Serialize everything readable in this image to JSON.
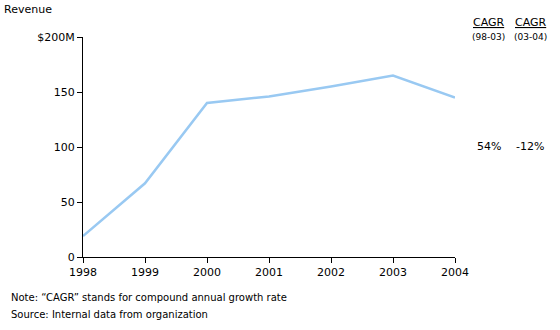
{
  "chart_data": {
    "type": "line",
    "ylabel": "Revenue",
    "x": [
      1998,
      1999,
      2000,
      2001,
      2002,
      2003,
      2004
    ],
    "values": [
      19,
      67,
      140,
      146,
      155,
      165,
      145
    ],
    "color": "#99c9f2",
    "xlim": [
      1998,
      2004
    ],
    "xticks": [
      1998,
      1999,
      2000,
      2001,
      2002,
      2003,
      2004
    ],
    "ylim": [
      0,
      200
    ],
    "yticks": [
      0,
      50,
      100,
      150,
      {
        "value": 200,
        "label": "$200M"
      }
    ],
    "grid": false,
    "cagr": [
      {
        "label": "CAGR",
        "period": "(98-03)",
        "value": 54,
        "value_label": "54%"
      },
      {
        "label": "CAGR",
        "period": "(03-04)",
        "value": -12,
        "value_label": "-12%"
      }
    ],
    "notes": [
      "Note: “CAGR” stands for compound annual growth rate",
      "Source: Internal data from organization"
    ]
  }
}
